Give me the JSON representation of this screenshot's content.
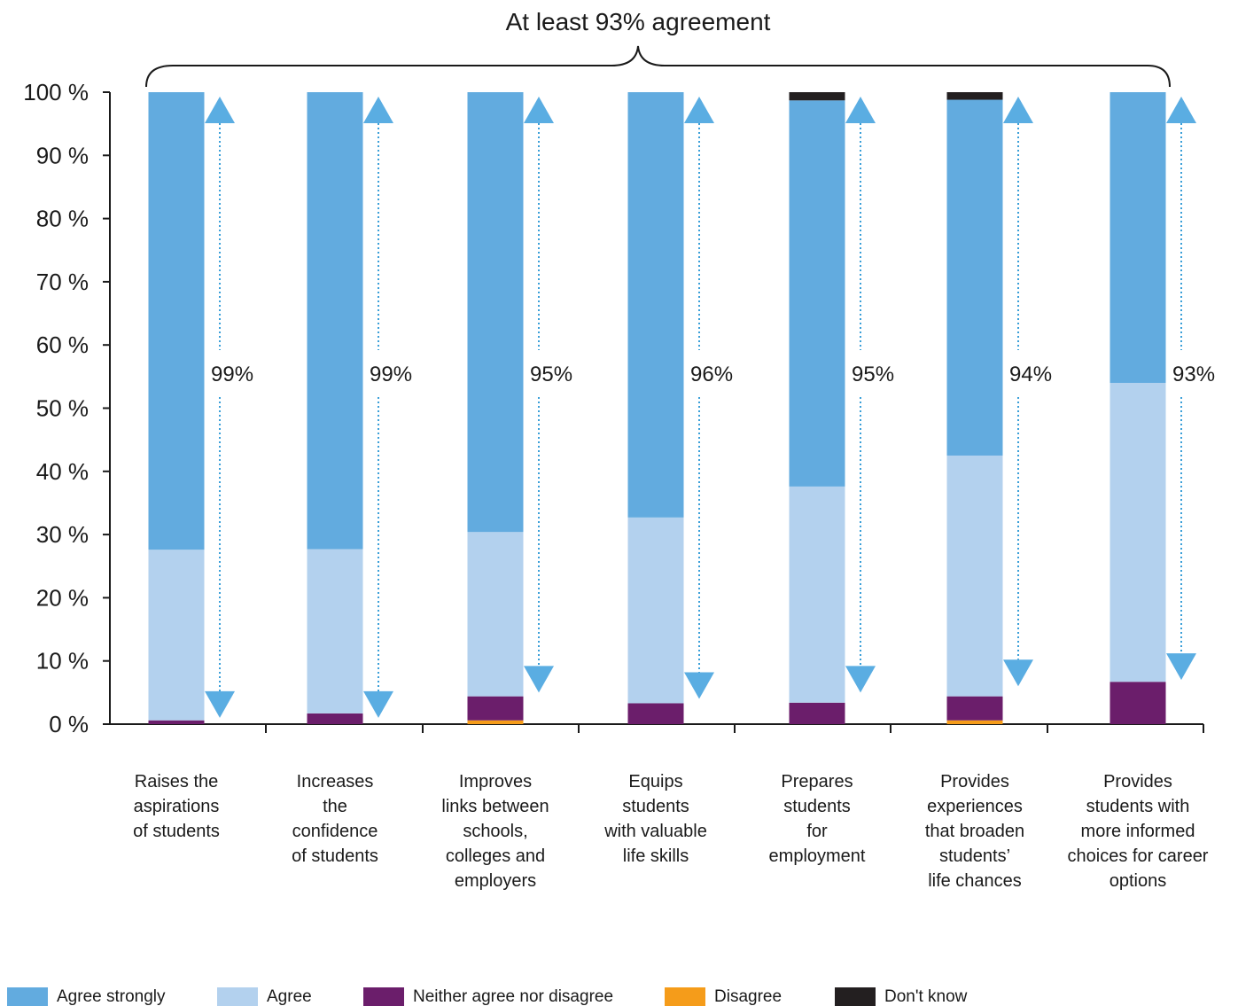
{
  "chart_data": {
    "type": "bar",
    "stacked": true,
    "title": "At least 93% agreement",
    "xlabel": "",
    "ylabel": "",
    "ylim": [
      0,
      100
    ],
    "yticks": [
      0,
      10,
      20,
      30,
      40,
      50,
      60,
      70,
      80,
      90,
      100
    ],
    "ytick_labels": [
      "0 %",
      "10 %",
      "20 %",
      "30 %",
      "40 %",
      "50 %",
      "60 %",
      "70 %",
      "80 %",
      "90 %",
      "100 %"
    ],
    "grid": false,
    "legend_position": "bottom",
    "categories": [
      "Raises the aspirations of students",
      "Increases the confidence of students",
      "Improves links between schools, colleges and employers",
      "Equips students with valuable life skills",
      "Prepares students for employment",
      "Provides experiences that broaden students’ life chances",
      "Provides students with more informed choices for career options"
    ],
    "category_lines": [
      [
        "Raises the",
        "aspirations",
        "of students"
      ],
      [
        "Increases",
        "the",
        "confidence",
        "of students"
      ],
      [
        "Improves",
        "links between",
        "schools,",
        "colleges and",
        "employers"
      ],
      [
        "Equips",
        "students",
        "with valuable",
        "life skills"
      ],
      [
        "Prepares",
        "students",
        "for",
        "employment"
      ],
      [
        "Provides",
        "experiences",
        "that broaden",
        "students’",
        "life chances"
      ],
      [
        "Provides",
        "students with",
        "more informed",
        "choices for career",
        "options"
      ]
    ],
    "series": [
      {
        "name": "Disagree",
        "color": "#f59c1a",
        "values": [
          0,
          0,
          0.6,
          0,
          0,
          0.6,
          0
        ]
      },
      {
        "name": "Neither agree nor disagree",
        "color": "#6b1e6b",
        "values": [
          0.6,
          1.7,
          3.8,
          3.3,
          3.4,
          3.8,
          6.7
        ]
      },
      {
        "name": "Agree",
        "color": "#b3d1ee",
        "values": [
          27.0,
          26.0,
          26.0,
          29.4,
          34.2,
          38.1,
          47.3
        ]
      },
      {
        "name": "Agree strongly",
        "color": "#62abdf",
        "values": [
          72.4,
          72.3,
          69.6,
          67.3,
          61.1,
          56.3,
          46.0
        ]
      },
      {
        "name": "Don't know",
        "color": "#231f20",
        "values": [
          0,
          0,
          0,
          0,
          1.3,
          1.2,
          0
        ]
      }
    ],
    "agreement": {
      "labels": [
        "99%",
        "99%",
        "95%",
        "96%",
        "95%",
        "94%",
        "93%"
      ],
      "values": [
        99,
        99,
        95,
        96,
        95,
        94,
        93
      ],
      "color": "#3a9fd8"
    },
    "legend_order": [
      "Agree strongly",
      "Agree",
      "Neither agree nor disagree",
      "Disagree",
      "Don't know"
    ]
  }
}
